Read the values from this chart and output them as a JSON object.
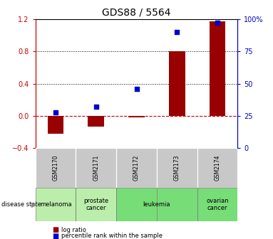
{
  "title": "GDS88 / 5564",
  "samples": [
    "GSM2170",
    "GSM2171",
    "GSM2172",
    "GSM2173",
    "GSM2174"
  ],
  "log_ratio": [
    -0.22,
    -0.13,
    -0.02,
    0.8,
    1.17
  ],
  "percentile_rank": [
    28,
    32,
    46,
    90,
    97
  ],
  "ylim_left": [
    -0.4,
    1.2
  ],
  "ylim_right": [
    0,
    100
  ],
  "yticks_left": [
    -0.4,
    0.0,
    0.4,
    0.8,
    1.2
  ],
  "yticks_right": [
    0,
    25,
    50,
    75,
    100
  ],
  "hlines": [
    0.4,
    0.8
  ],
  "disease_groups": [
    {
      "label": "melanoma",
      "n_samples": 1,
      "color": "#bbeeaa"
    },
    {
      "label": "prostate\ncancer",
      "n_samples": 1,
      "color": "#bbeeaa"
    },
    {
      "label": "leukemia",
      "n_samples": 2,
      "color": "#77dd77"
    },
    {
      "label": "ovarian\ncancer",
      "n_samples": 1,
      "color": "#77dd77"
    }
  ],
  "bar_color": "#990000",
  "dot_color": "#0000cc",
  "zero_line_color": "#cc0000",
  "dotted_line_color": "#000000",
  "legend_bar_label": "log ratio",
  "legend_dot_label": "percentile rank within the sample",
  "title_fontsize": 10,
  "tick_fontsize": 7,
  "axis_label_color_left": "#cc0000",
  "axis_label_color_right": "#0000cc",
  "gsm_box_color": "#c8c8c8",
  "bar_width": 0.4
}
